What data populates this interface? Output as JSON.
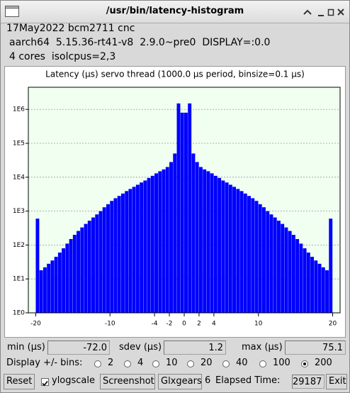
{
  "window": {
    "title": "/usr/bin/latency-histogram"
  },
  "info": [
    "17May2022 bcm2711 cnc",
    "aarch64  5.15.36-rt41-v8  2.9.0~pre0  DISPLAY=:0.0",
    "4 cores  isolcpus=2,3"
  ],
  "chart_data": {
    "type": "histogram",
    "title": "Latency (μs) servo thread (1000.0 μs period, binsize=0.1 μs)",
    "bins": [
      -20,
      -19.5,
      -19,
      -18.5,
      -18,
      -17.5,
      -17,
      -16.5,
      -16,
      -15.5,
      -15,
      -14.5,
      -14,
      -13.5,
      -13,
      -12.5,
      -12,
      -11.5,
      -11,
      -10.5,
      -10,
      -9.5,
      -9,
      -8.5,
      -8,
      -7.5,
      -7,
      -6.5,
      -6,
      -5.5,
      -5,
      -4.5,
      -4,
      -3.5,
      -3,
      -2.5,
      -2,
      -1.5,
      -1,
      -0.5,
      0,
      0.5,
      1,
      1.5,
      2,
      2.5,
      3,
      3.5,
      4,
      4.5,
      5,
      5.5,
      6,
      6.5,
      7,
      7.5,
      8,
      8.5,
      9,
      9.5,
      10,
      10.5,
      11,
      11.5,
      12,
      12.5,
      13,
      13.5,
      14,
      14.5,
      15,
      15.5,
      16,
      16.5,
      17,
      17.5,
      18,
      18.5,
      19,
      19.5,
      20
    ],
    "values": [
      600,
      18,
      22,
      28,
      35,
      45,
      60,
      80,
      110,
      150,
      200,
      260,
      330,
      420,
      520,
      650,
      800,
      1000,
      1300,
      1600,
      2000,
      2400,
      2800,
      3300,
      3900,
      4500,
      5200,
      6000,
      7000,
      8000,
      9500,
      11000,
      13000,
      15000,
      17000,
      20000,
      28000,
      50000,
      1500000,
      800000,
      800000,
      1500000,
      50000,
      28000,
      20000,
      17000,
      15000,
      13000,
      11000,
      9500,
      8000,
      7000,
      6000,
      5200,
      4500,
      3900,
      3300,
      2800,
      2400,
      2000,
      1600,
      1300,
      1000,
      800,
      650,
      520,
      420,
      330,
      260,
      200,
      150,
      110,
      80,
      60,
      45,
      35,
      28,
      22,
      18,
      600
    ],
    "color": "#0000ff",
    "background": "#f0fff0",
    "xlim": [
      -21,
      21
    ],
    "xticks": [
      -20,
      -10,
      -4,
      -2,
      0,
      2,
      4,
      10,
      20
    ],
    "ylim": [
      1,
      4500000
    ],
    "yticks": [
      {
        "value": 1,
        "label": "1E0"
      },
      {
        "value": 10,
        "label": "1E1"
      },
      {
        "value": 100,
        "label": "1E2"
      },
      {
        "value": 1000,
        "label": "1E3"
      },
      {
        "value": 10000,
        "label": "1E4"
      },
      {
        "value": 100000,
        "label": "1E5"
      },
      {
        "value": 1000000,
        "label": "1E6"
      }
    ],
    "log_y": true,
    "grid": true
  },
  "stats": {
    "min_label": "min (µs)",
    "min": "-72.0",
    "sdev_label": "sdev (µs)",
    "sdev": "1.2",
    "max_label": "max (µs)",
    "max": "75.1"
  },
  "bins_control": {
    "label": "Display +/- bins:",
    "options": [
      2,
      4,
      10,
      20,
      40,
      100,
      200
    ],
    "selected": 200
  },
  "controls": {
    "reset": "Reset",
    "ylogscale": {
      "label": "ylogscale",
      "checked": true
    },
    "screenshot": "Screenshot",
    "glxgears": "Glxgears",
    "glxgears_count": 6,
    "elapsed_label": "Elapsed Time:",
    "elapsed": 29187,
    "exit": "Exit"
  }
}
